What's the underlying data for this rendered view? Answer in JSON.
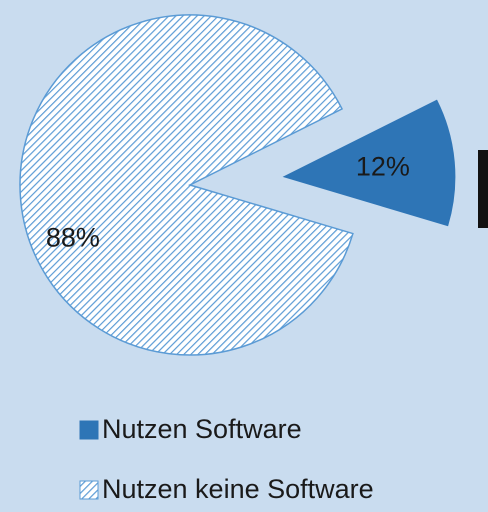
{
  "chart_data": {
    "type": "pie",
    "categories": [
      "Nutzen Software",
      "Nutzen keine Software"
    ],
    "values": [
      12,
      88
    ],
    "value_labels": [
      "12%",
      "88%"
    ],
    "colors": [
      "#2e75b6",
      "#5b9bd5"
    ],
    "hatched": [
      false,
      true
    ],
    "legend": "bottom"
  }
}
